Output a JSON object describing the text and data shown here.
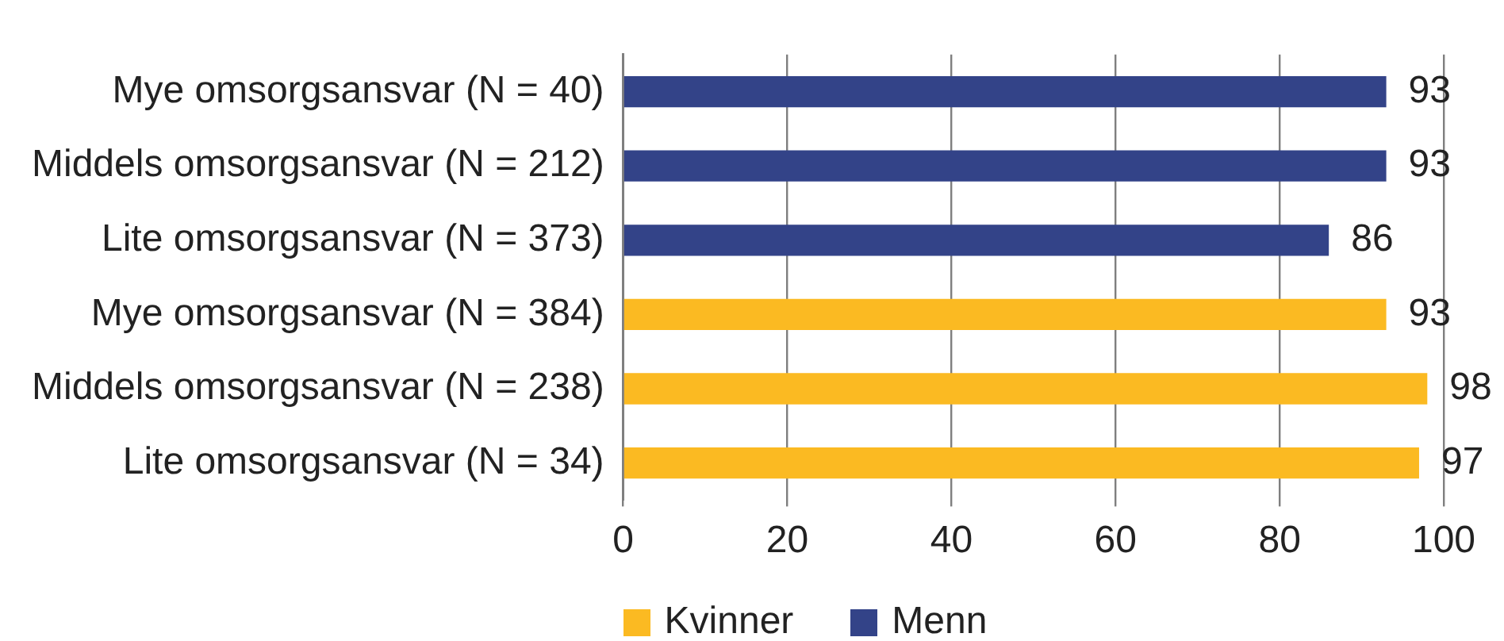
{
  "chart_data": {
    "type": "bar",
    "orientation": "horizontal",
    "categories": [
      "Mye omsorgsansvar (N = 40)",
      "Middels omsorgsansvar (N = 212)",
      "Lite omsorgsansvar (N = 373)",
      "Mye omsorgsansvar (N = 384)",
      "Middels omsorgsansvar (N = 238)",
      "Lite omsorgsansvar (N = 34)"
    ],
    "series": [
      {
        "name": "Kvinner",
        "color": "#fbba22",
        "values": [
          null,
          null,
          null,
          93,
          98,
          97
        ]
      },
      {
        "name": "Menn",
        "color": "#334388",
        "values": [
          93,
          93,
          86,
          null,
          null,
          null
        ]
      }
    ],
    "xlim": [
      0,
      100
    ],
    "xticks": [
      0,
      20,
      40,
      60,
      80,
      100
    ],
    "grid": "x",
    "legend": "bottom",
    "data_labels": true
  }
}
